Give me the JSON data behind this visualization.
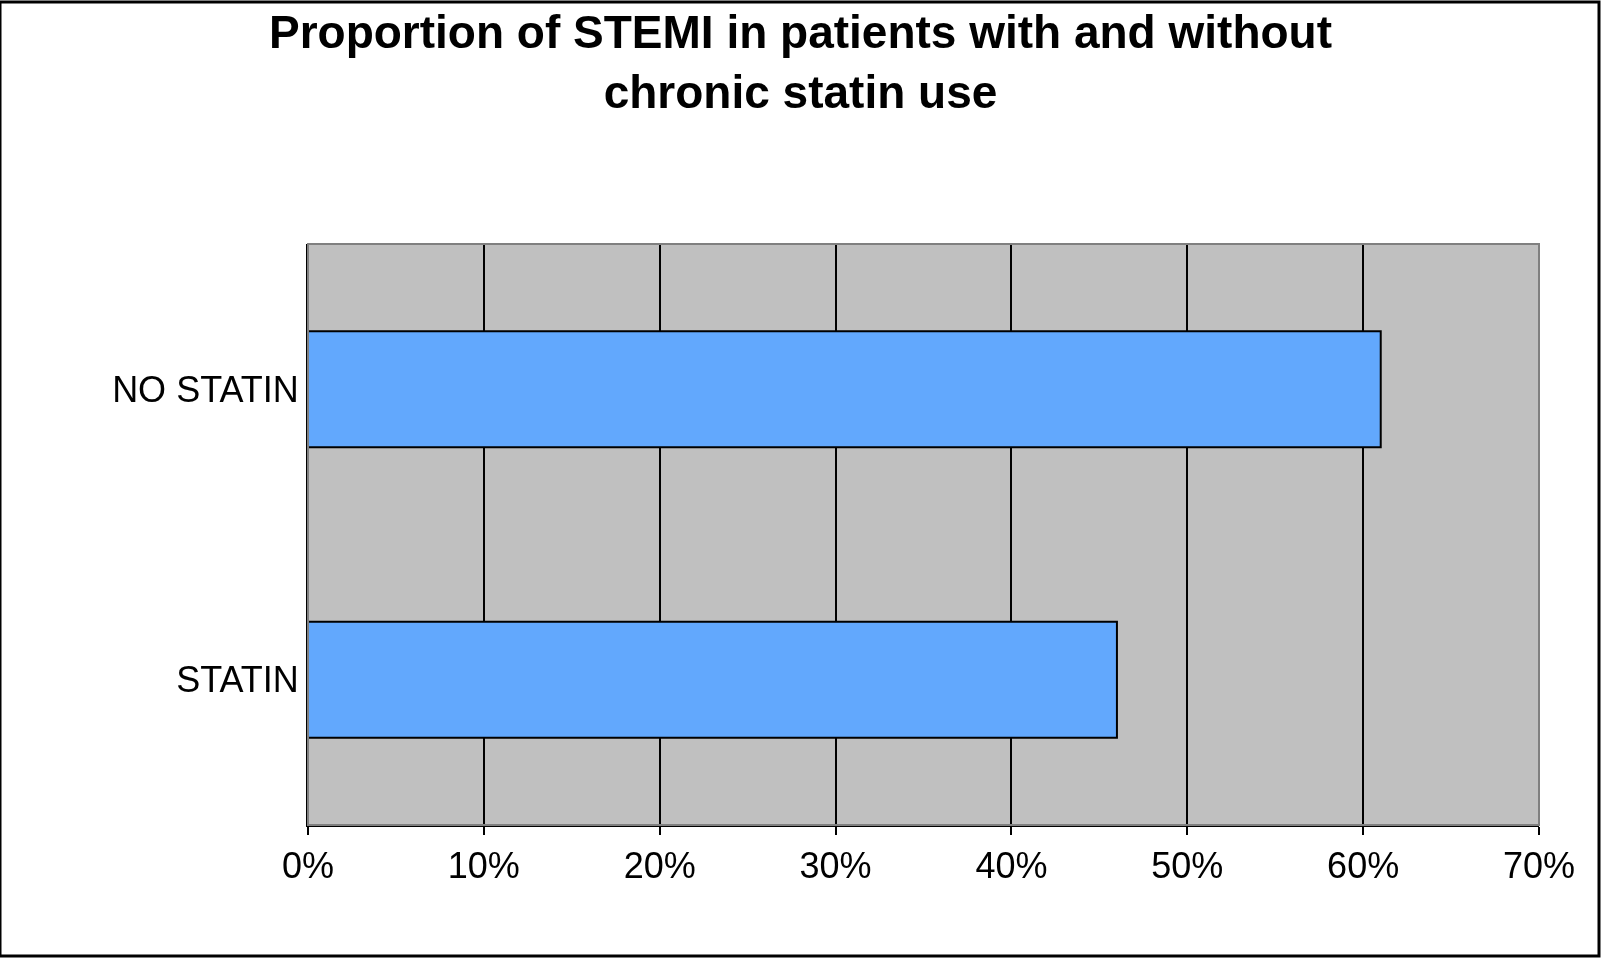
{
  "chart_data": {
    "type": "bar",
    "orientation": "horizontal",
    "title": "Proportion of STEMI in patients with and without\nchronic statin use",
    "categories": [
      "NO STATIN",
      "STATIN"
    ],
    "values": [
      61,
      46
    ],
    "color": "#62a8fd",
    "xlim": [
      0,
      70
    ],
    "xticks": [
      {
        "value": 0,
        "label": "0%"
      },
      {
        "value": 10,
        "label": "10%"
      },
      {
        "value": 20,
        "label": "20%"
      },
      {
        "value": 30,
        "label": "30%"
      },
      {
        "value": 40,
        "label": "40%"
      },
      {
        "value": 50,
        "label": "50%"
      },
      {
        "value": 60,
        "label": "60%"
      },
      {
        "value": 70,
        "label": "70%"
      }
    ],
    "grid": "x",
    "legend": false
  }
}
